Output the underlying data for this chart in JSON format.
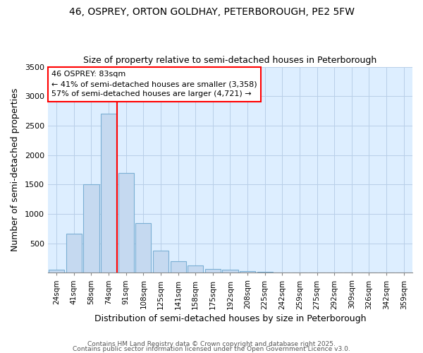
{
  "title": "46, OSPREY, ORTON GOLDHAY, PETERBOROUGH, PE2 5FW",
  "subtitle": "Size of property relative to semi-detached houses in Peterborough",
  "xlabel": "Distribution of semi-detached houses by size in Peterborough",
  "ylabel": "Number of semi-detached properties",
  "bar_color": "#c5d9f0",
  "bar_edge_color": "#7bafd4",
  "grid_color": "#b8cfe8",
  "background_color": "#ddeeff",
  "categories": [
    "24sqm",
    "41sqm",
    "58sqm",
    "74sqm",
    "91sqm",
    "108sqm",
    "125sqm",
    "141sqm",
    "158sqm",
    "175sqm",
    "192sqm",
    "208sqm",
    "225sqm",
    "242sqm",
    "259sqm",
    "275sqm",
    "292sqm",
    "309sqm",
    "326sqm",
    "342sqm",
    "359sqm"
  ],
  "values": [
    50,
    670,
    1500,
    2700,
    1700,
    850,
    375,
    200,
    130,
    65,
    50,
    30,
    20,
    0,
    0,
    0,
    0,
    0,
    0,
    0,
    0
  ],
  "red_line_x": 3.5,
  "annotation_title": "46 OSPREY: 83sqm",
  "annotation_line1": "← 41% of semi-detached houses are smaller (3,358)",
  "annotation_line2": "57% of semi-detached houses are larger (4,721) →",
  "footer1": "Contains HM Land Registry data © Crown copyright and database right 2025.",
  "footer2": "Contains public sector information licensed under the Open Government Licence v3.0.",
  "ylim": [
    0,
    3500
  ],
  "yticks": [
    0,
    500,
    1000,
    1500,
    2000,
    2500,
    3000,
    3500
  ]
}
